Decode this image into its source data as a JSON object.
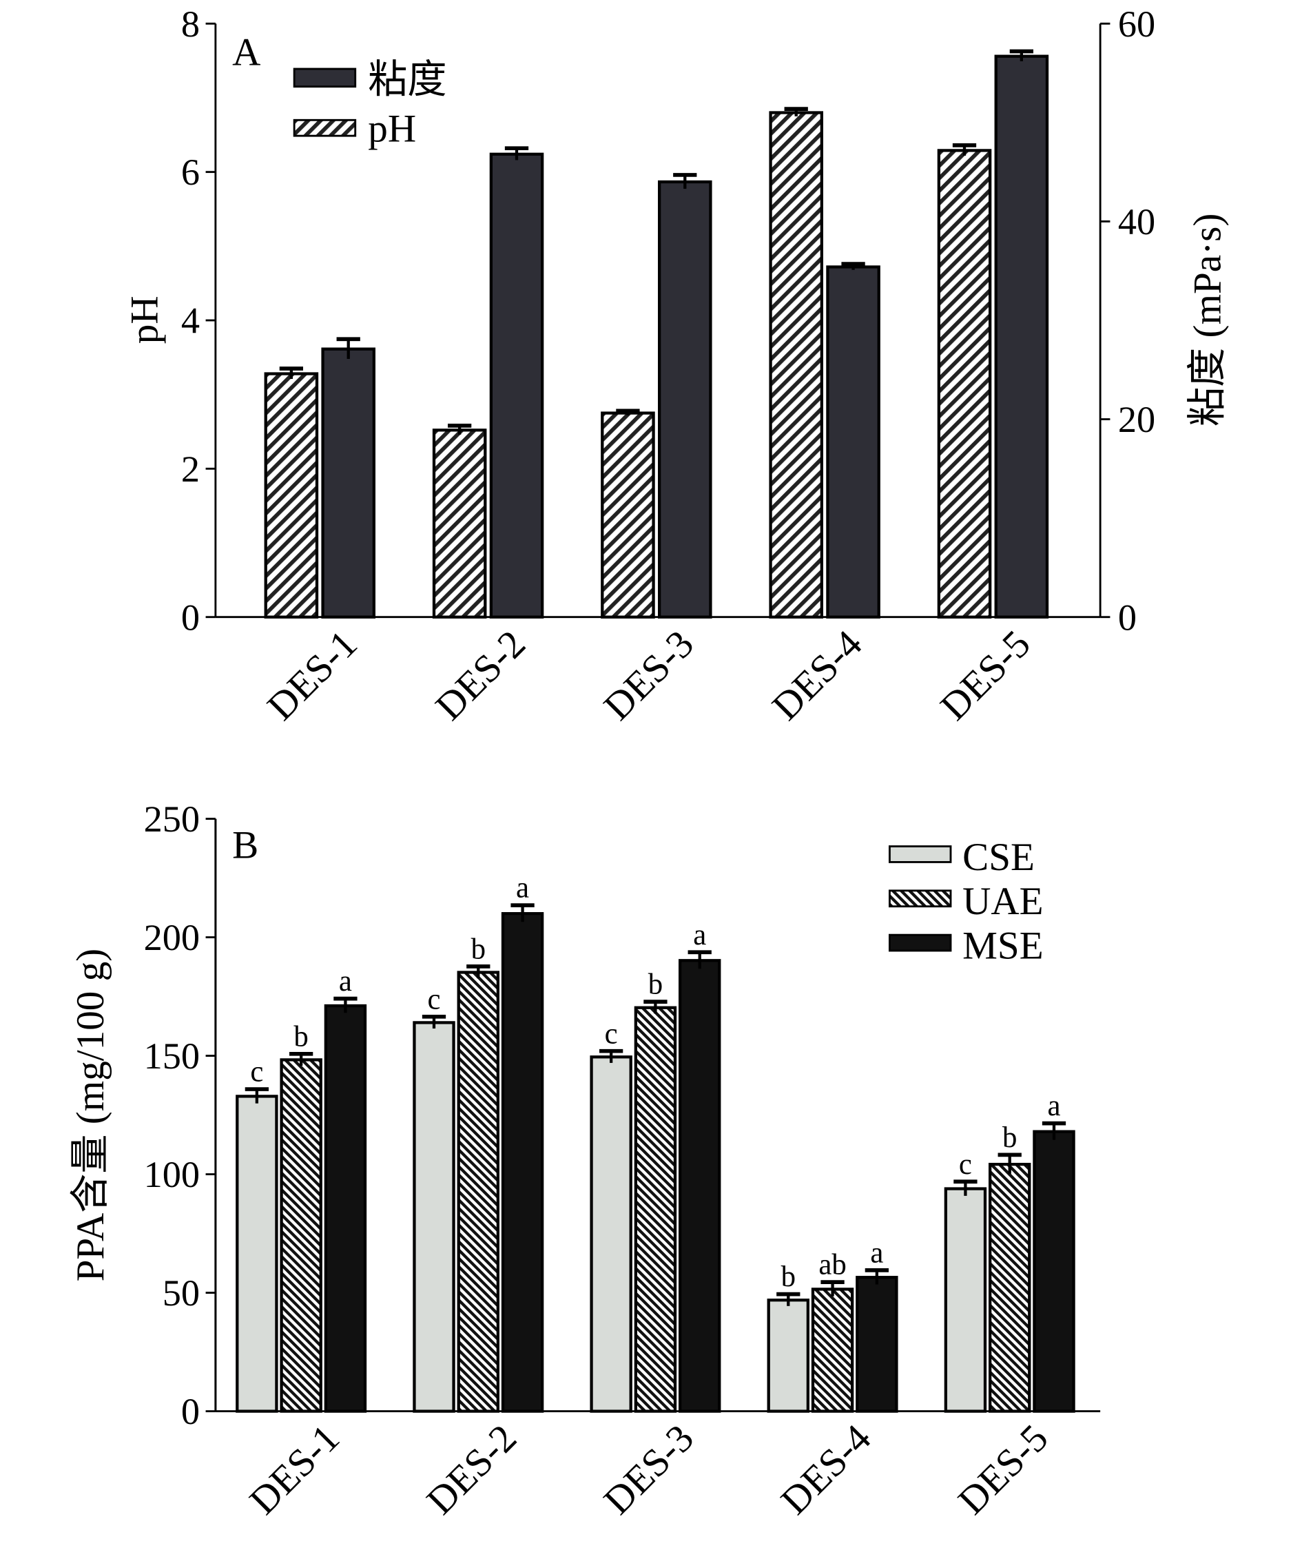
{
  "chart_data": [
    {
      "type": "bar",
      "panel_label": "A",
      "categories": [
        "DES-1",
        "DES-2",
        "DES-3",
        "DES-4",
        "DES-5"
      ],
      "ylabel": "pH",
      "ylabel_right": "粘度 (mPa·s)",
      "ylim": [
        0,
        8
      ],
      "ylim_right": [
        0,
        60
      ],
      "yticks": [
        "0",
        "2",
        "4",
        "6",
        "8"
      ],
      "yticks_right": [
        "0",
        "20",
        "40",
        "60"
      ],
      "legend_position": "top-left",
      "series": [
        {
          "name": "粘度",
          "axis": "right",
          "style": "dark",
          "values": [
            27.1,
            46.8,
            44.0,
            35.4,
            56.7
          ],
          "errors": [
            1.0,
            0.6,
            0.7,
            0.3,
            0.5
          ]
        },
        {
          "name": "pH",
          "axis": "left",
          "style": "hatched",
          "values": [
            3.28,
            2.52,
            2.75,
            6.8,
            6.29
          ],
          "errors": [
            0.07,
            0.06,
            0.03,
            0.05,
            0.07
          ]
        }
      ]
    },
    {
      "type": "bar",
      "panel_label": "B",
      "categories": [
        "DES-1",
        "DES-2",
        "DES-3",
        "DES-4",
        "DES-5"
      ],
      "ylabel": "PPA含量 (mg/100 g)",
      "ylim": [
        0,
        250
      ],
      "yticks": [
        "0",
        "50",
        "100",
        "150",
        "200",
        "250"
      ],
      "legend_position": "top-right",
      "series": [
        {
          "name": "CSE",
          "style": "light",
          "values": [
            132.9,
            164.0,
            149.5,
            46.9,
            93.9
          ],
          "errors": [
            3,
            2.5,
            2.5,
            2.5,
            3
          ],
          "letters": [
            "c",
            "c",
            "c",
            "b",
            "c"
          ]
        },
        {
          "name": "UAE",
          "style": "hatched",
          "values": [
            148.3,
            185.2,
            170.3,
            51.5,
            104.2
          ],
          "errors": [
            2.5,
            2.5,
            2.5,
            3,
            4
          ],
          "letters": [
            "b",
            "b",
            "b",
            "ab",
            "b"
          ]
        },
        {
          "name": "MSE",
          "style": "black",
          "values": [
            171.1,
            210.0,
            190.2,
            56.5,
            118.0
          ],
          "errors": [
            3,
            3.5,
            3.5,
            3,
            3.5
          ],
          "letters": [
            "a",
            "a",
            "a",
            "a",
            "a"
          ]
        }
      ]
    }
  ]
}
